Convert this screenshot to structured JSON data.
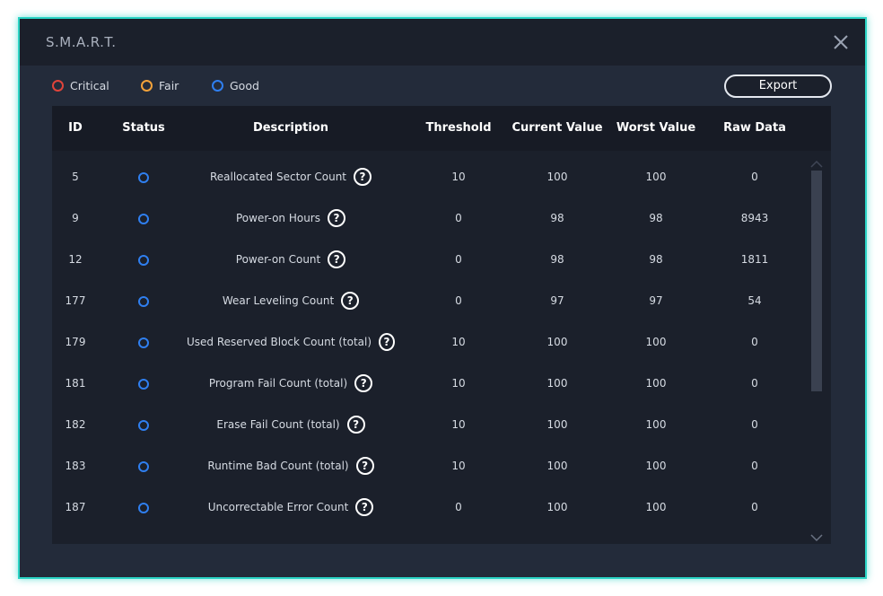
{
  "window": {
    "title": "S.M.A.R.T.",
    "close_icon": "close-icon",
    "accent_color": "#2ad3c4"
  },
  "legend": [
    {
      "label": "Critical",
      "color": "#e0443b"
    },
    {
      "label": "Fair",
      "color": "#f3a23a"
    },
    {
      "label": "Good",
      "color": "#2f7ff0"
    }
  ],
  "toolbar": {
    "export_label": "Export"
  },
  "table": {
    "columns": [
      "ID",
      "Status",
      "Description",
      "Threshold",
      "Current Value",
      "Worst Value",
      "Raw Data"
    ],
    "rows": [
      {
        "id": "5",
        "description": "Reallocated Sector Count",
        "threshold": "10",
        "current": "100",
        "worst": "100",
        "raw": "0"
      },
      {
        "id": "9",
        "description": "Power-on Hours",
        "threshold": "0",
        "current": "98",
        "worst": "98",
        "raw": "8943"
      },
      {
        "id": "12",
        "description": "Power-on Count",
        "threshold": "0",
        "current": "98",
        "worst": "98",
        "raw": "1811"
      },
      {
        "id": "177",
        "description": "Wear Leveling Count",
        "threshold": "0",
        "current": "97",
        "worst": "97",
        "raw": "54"
      },
      {
        "id": "179",
        "description": "Used Reserved Block Count (total)",
        "threshold": "10",
        "current": "100",
        "worst": "100",
        "raw": "0"
      },
      {
        "id": "181",
        "description": "Program Fail Count (total)",
        "threshold": "10",
        "current": "100",
        "worst": "100",
        "raw": "0"
      },
      {
        "id": "182",
        "description": "Erase Fail Count (total)",
        "threshold": "10",
        "current": "100",
        "worst": "100",
        "raw": "0"
      },
      {
        "id": "183",
        "description": "Runtime Bad Count (total)",
        "threshold": "10",
        "current": "100",
        "worst": "100",
        "raw": "0"
      },
      {
        "id": "187",
        "description": "Uncorrectable Error Count",
        "threshold": "0",
        "current": "100",
        "worst": "100",
        "raw": "0"
      }
    ],
    "help_symbol": "?",
    "status_color": "#2f7ff0"
  }
}
